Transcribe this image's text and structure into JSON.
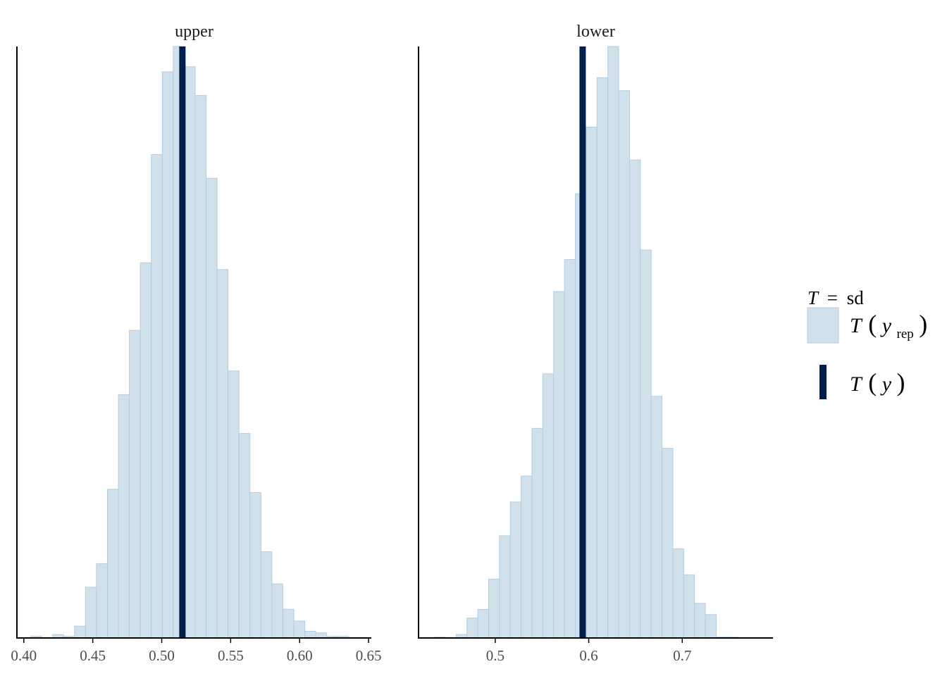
{
  "chart_data": [
    {
      "type": "bar",
      "title": "upper",
      "xlim": [
        0.395,
        0.652
      ],
      "xticks": [
        0.4,
        0.45,
        0.5,
        0.55,
        0.6,
        0.65
      ],
      "xtick_labels": [
        "0.40",
        "0.45",
        "0.50",
        "0.55",
        "0.60",
        "0.65"
      ],
      "bin_start": 0.405,
      "bin_width": 0.00795,
      "counts": [
        1,
        0,
        2,
        1,
        7,
        30,
        44,
        88,
        144,
        182,
        222,
        286,
        335,
        350,
        338,
        321,
        272,
        218,
        158,
        121,
        86,
        51,
        32,
        17,
        10,
        4,
        3,
        1,
        1
      ],
      "observed": 0.515
    },
    {
      "type": "bar",
      "title": "lower",
      "xlim": [
        0.418,
        0.797
      ],
      "xticks": [
        0.5,
        0.6,
        0.7
      ],
      "xtick_labels": [
        "0.5",
        "0.6",
        "0.7"
      ],
      "bin_start": 0.435,
      "bin_width": 0.01159,
      "counts": [
        1,
        0,
        4,
        23,
        33,
        68,
        118,
        157,
        187,
        242,
        305,
        400,
        437,
        513,
        590,
        647,
        683,
        632,
        552,
        448,
        279,
        219,
        103,
        73,
        40,
        27,
        1,
        1
      ],
      "observed": 0.5935
    }
  ],
  "legend": {
    "header_T": "T",
    "header_eq": "=",
    "header_stat": "sd",
    "rep_T": "T",
    "rep_y": "y",
    "rep_sub": "rep",
    "obs_T": "T",
    "obs_y": "y"
  },
  "colors": {
    "bar_fill": "#d1e1ec",
    "bar_stroke": "#b3cde0",
    "observed_line": "#011f4b",
    "axis": "#000000"
  }
}
